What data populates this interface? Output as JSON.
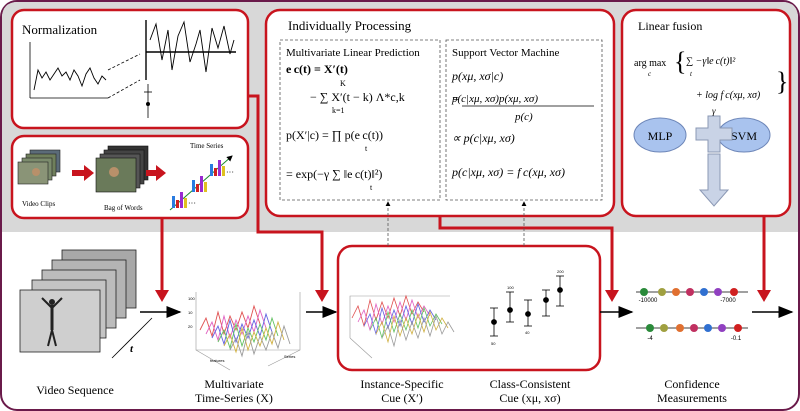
{
  "top_panel": {
    "normalization": {
      "title": "Normalization"
    },
    "bag_of_words": {
      "time_series_label": "Time Series",
      "video_clips_label": "Video Clips",
      "bag_of_words_label": "Bag of Words",
      "dots": "···"
    },
    "individually_processing": {
      "title": "Individually Processing",
      "mlp": {
        "title": "Multivariate  Linear Prediction",
        "eq1": "e c(t) = X′(t)",
        "eq2": "− ∑ X′(t − k) Λ*c,k",
        "sum_top": "K",
        "sum_bottom": "k=1",
        "eq3": "p(X′|c) = ∏ p(e c(t))",
        "prod_bottom": "t",
        "eq4": "= exp(−γ ∑ ‖e c(t)‖²)",
        "sum2_bottom": "t"
      },
      "svm": {
        "title": "Support Vector Machine",
        "eq1": "p(xμ, xσ|c)",
        "eq2_num": "p(c|xμ, xσ)p(xμ, xσ)",
        "eq2_den": "p(c)",
        "eq3": "∝ p(c|xμ, xσ)",
        "eq4": "p(c|xμ, xσ) = f c(xμ, xσ)"
      }
    },
    "linear_fusion": {
      "title": "Linear fusion",
      "argmax": "arg max",
      "argmax_sub": "c",
      "eq_line1": "∑ −γ‖e c(t)‖²",
      "eq_sub": "t",
      "eq_line2": "+ log f c(xμ, xσ)",
      "mlp_label": "MLP",
      "svm_label": "SVM",
      "gamma": "γ"
    }
  },
  "bottom_panel": {
    "video_sequence": "Video Sequence",
    "t_label": "t",
    "ts_label1": "Multivariate",
    "ts_label2": "Time-Series (X)",
    "instance_label1": "Instance-Specific",
    "instance_label2": "Cue (X′)",
    "class_label1": "Class-Consistent",
    "class_label2": "Cue (xμ, xσ)",
    "confidence_label1": "Confidence",
    "confidence_label2": "Measurements",
    "scale1_left": "-10000",
    "scale1_right": "-7000",
    "scale2_left": "-4",
    "scale2_right": "-0.1",
    "plot_axis_labels": {
      "features": "features",
      "series": "Series",
      "values": [
        "100",
        "10",
        "20",
        "30",
        "40",
        "50"
      ]
    },
    "marker_values": [
      "100",
      "90",
      "80",
      "70",
      "60",
      "50",
      "40",
      "30",
      "200",
      "150"
    ]
  },
  "colors": {
    "frame": "#6a1a4a",
    "accent_red": "#c8141e",
    "top_bg": "#d8d8d8",
    "arrow_fill": "#c9d3e6"
  }
}
